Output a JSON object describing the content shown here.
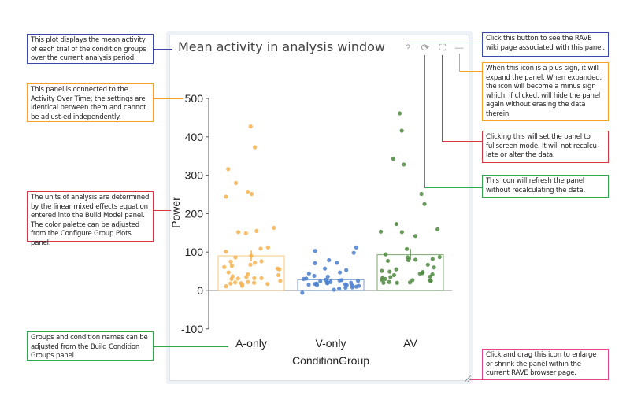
{
  "panel": {
    "title": "Mean activity in analysis window",
    "tools": [
      {
        "icon": "help-icon",
        "glyph": "?"
      },
      {
        "icon": "refresh-icon",
        "glyph": "⟳"
      },
      {
        "icon": "fullscreen-icon",
        "glyph": "⛶"
      },
      {
        "icon": "collapse-icon",
        "glyph": "—"
      }
    ],
    "resize_icon": "resize-handle-icon"
  },
  "annotations": {
    "left": [
      {
        "text": "This plot displays the mean activity of each trial of the condition groups over the current analysis period.",
        "color": "#3b4aa8"
      },
      {
        "text": "This panel is connected to the Activity Over Time; the settings are identical between them and cannot be adjust-ed independently.",
        "color": "#f7a12b"
      },
      {
        "text": "The units of analysis are determined by the linear mixed effects equation entered into the Build Model panel. The color palette can be adjusted from the Configure Group Plots panel.",
        "color": "#d9373f"
      },
      {
        "text": "Groups and condition names can be adjusted from the Build Condition Groups panel.",
        "color": "#2ea84a"
      }
    ],
    "right": [
      {
        "text": "Click this button to see the RAVE wiki page associated with this panel.",
        "color": "#3b4aa8"
      },
      {
        "text": "When this icon is a plus sign, it will expand the panel. When expanded, the icon will become a minus sign which, if clicked, will hide the panel again without erasing the data therein.",
        "color": "#f7a12b"
      },
      {
        "text": "Clicking this will set the panel to fullscreen mode. It will not recalcu-late or alter the data.",
        "color": "#d9373f"
      },
      {
        "text": "This icon will refresh the panel without recalculating the data.",
        "color": "#2ea84a"
      },
      {
        "text": "Click and drag this icon to enlarge or shrink the panel within the current RAVE browser page.",
        "color": "#e8458b"
      }
    ]
  },
  "chart_data": {
    "type": "bar",
    "xlabel": "ConditionGroup",
    "ylabel": "Power",
    "ylim": [
      -100,
      500
    ],
    "yticks": [
      "-100",
      "0",
      "100",
      "200",
      "300",
      "400",
      "500"
    ],
    "categories": [
      "A-only",
      "V-only",
      "AV"
    ],
    "values": [
      90,
      28,
      93
    ],
    "error": [
      [
        76,
        104
      ],
      [
        25,
        31
      ],
      [
        80,
        108
      ]
    ],
    "colors": [
      "#f7b24f",
      "#4a7fd0",
      "#4e8a3e"
    ],
    "points": [
      [
        427,
        373,
        316,
        280,
        257,
        251,
        244,
        163,
        155,
        149,
        152,
        112,
        109,
        101,
        90,
        86,
        76,
        75,
        72,
        67,
        64,
        61,
        57,
        55,
        47,
        42,
        40,
        37,
        35,
        32,
        32,
        31,
        30,
        25,
        22,
        21,
        20,
        19,
        18,
        17,
        16,
        12,
        11
      ],
      [
        112,
        103,
        98,
        79,
        71,
        72,
        57,
        53,
        47,
        44,
        38,
        36,
        31,
        30,
        28,
        27,
        26,
        25,
        24,
        22,
        22,
        21,
        20,
        20,
        19,
        18,
        17,
        16,
        15,
        14,
        14,
        13,
        12,
        10,
        8,
        7,
        5,
        2,
        -6
      ],
      [
        461,
        416,
        343,
        328,
        251,
        225,
        173,
        159,
        153,
        152,
        142,
        108,
        94,
        87,
        86,
        82,
        80,
        79,
        77,
        67,
        60,
        55,
        51,
        49,
        48,
        45,
        44,
        42,
        40,
        36,
        35,
        33,
        30,
        28,
        27,
        26,
        25,
        22,
        21,
        20,
        20
      ]
    ]
  }
}
